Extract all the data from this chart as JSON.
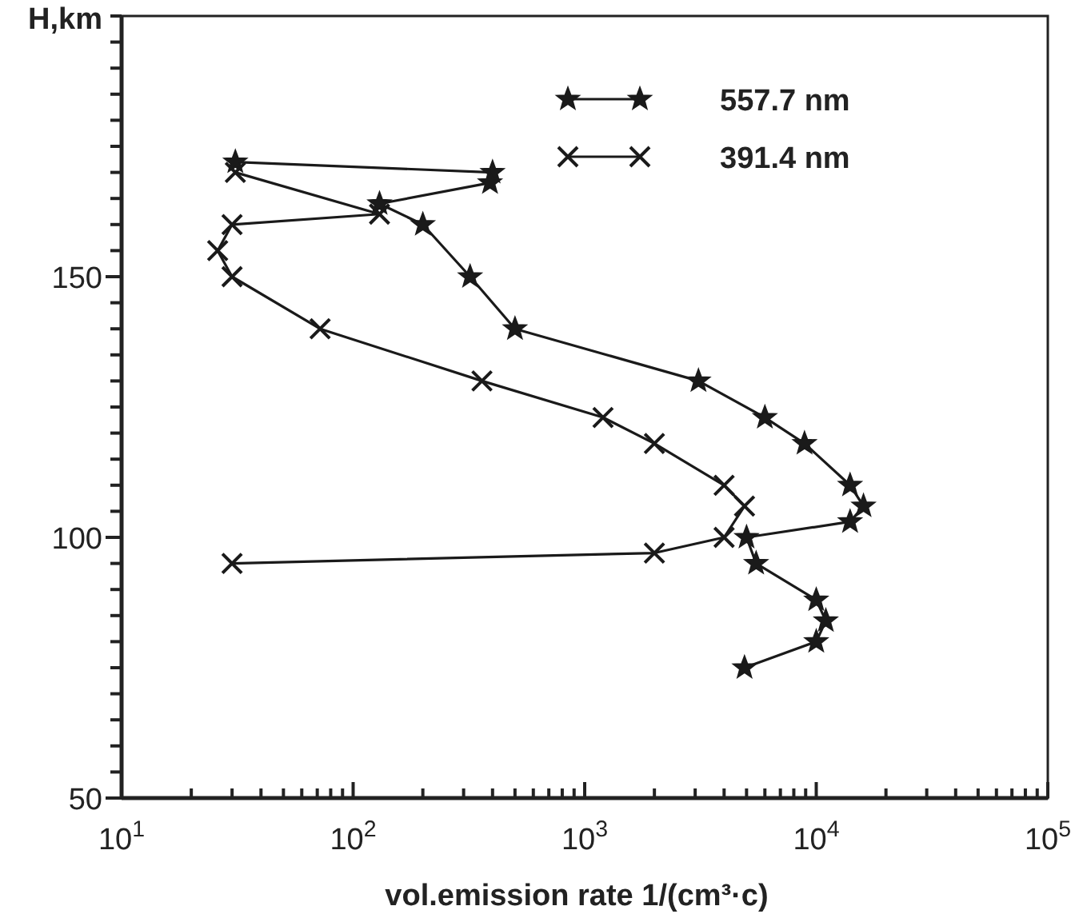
{
  "chart_data": {
    "type": "line",
    "xlabel": "vol.emission rate 1/(cm³·c)",
    "ylabel": "H,km",
    "log": "x",
    "grid": false,
    "legend": "top right",
    "line_style": "solid",
    "xlim": [
      10,
      100000
    ],
    "xticks": [
      {
        "value": 10,
        "label": "10$^{1}$"
      },
      {
        "value": 20,
        "label": null
      },
      {
        "value": 30,
        "label": null
      },
      {
        "value": 40,
        "label": null
      },
      {
        "value": 50,
        "label": null
      },
      {
        "value": 60,
        "label": null
      },
      {
        "value": 70,
        "label": null
      },
      {
        "value": 80,
        "label": null
      },
      {
        "value": 90,
        "label": null
      },
      {
        "value": 100,
        "label": "10$^{2}$"
      },
      {
        "value": 200,
        "label": null
      },
      {
        "value": 300,
        "label": null
      },
      {
        "value": 400,
        "label": null
      },
      {
        "value": 500,
        "label": null
      },
      {
        "value": 600,
        "label": null
      },
      {
        "value": 700,
        "label": null
      },
      {
        "value": 800,
        "label": null
      },
      {
        "value": 900,
        "label": null
      },
      {
        "value": 1000,
        "label": "10$^{3}$"
      },
      {
        "value": 2000,
        "label": null
      },
      {
        "value": 3000,
        "label": null
      },
      {
        "value": 4000,
        "label": null
      },
      {
        "value": 5000,
        "label": null
      },
      {
        "value": 6000,
        "label": null
      },
      {
        "value": 7000,
        "label": null
      },
      {
        "value": 8000,
        "label": null
      },
      {
        "value": 9000,
        "label": null
      },
      {
        "value": 10000,
        "label": "10$^{4}$"
      },
      {
        "value": 20000,
        "label": null
      },
      {
        "value": 30000,
        "label": null
      },
      {
        "value": 40000,
        "label": null
      },
      {
        "value": 50000,
        "label": null
      },
      {
        "value": 60000,
        "label": null
      },
      {
        "value": 70000,
        "label": null
      },
      {
        "value": 80000,
        "label": null
      },
      {
        "value": 90000,
        "label": null
      },
      {
        "value": 100000,
        "label": "10$^{5}$"
      }
    ],
    "ylim": [
      50,
      200
    ],
    "yticks": [
      50,
      {
        "value": 55,
        "label": null
      },
      {
        "value": 60,
        "label": null
      },
      {
        "value": 65,
        "label": null
      },
      {
        "value": 70,
        "label": null
      },
      {
        "value": 75,
        "label": null
      },
      {
        "value": 80,
        "label": null
      },
      {
        "value": 85,
        "label": null
      },
      {
        "value": 90,
        "label": null
      },
      {
        "value": 95,
        "label": null
      },
      100,
      {
        "value": 105,
        "label": null
      },
      {
        "value": 110,
        "label": null
      },
      {
        "value": 115,
        "label": null
      },
      {
        "value": 120,
        "label": null
      },
      {
        "value": 125,
        "label": null
      },
      {
        "value": 130,
        "label": null
      },
      {
        "value": 135,
        "label": null
      },
      {
        "value": 140,
        "label": null
      },
      {
        "value": 145,
        "label": null
      },
      150,
      {
        "value": 155,
        "label": null
      },
      {
        "value": 160,
        "label": null
      },
      {
        "value": 165,
        "label": null
      },
      {
        "value": 170,
        "label": null
      },
      {
        "value": 175,
        "label": null
      },
      {
        "value": 180,
        "label": null
      },
      {
        "value": 185,
        "label": null
      },
      {
        "value": 190,
        "label": null
      },
      {
        "value": 195,
        "label": null
      },
      {
        "value": 200,
        "label": null
      }
    ],
    "series": [
      {
        "name": "557.7 nm",
        "color": "#1a1a1a",
        "marker": "star",
        "x": [
          31,
          400,
          390,
          130,
          200,
          320,
          500,
          3100,
          6000,
          8900,
          14000,
          16000,
          14000,
          5000,
          5500,
          10000,
          11000,
          10000,
          4900
        ],
        "values": [
          172,
          170,
          168,
          164,
          160,
          150,
          140,
          130,
          123,
          118,
          110,
          106,
          103,
          100,
          95,
          88,
          84,
          80,
          75
        ]
      },
      {
        "name": "391.4 nm",
        "color": "#1a1a1a",
        "marker": "cross",
        "x": [
          30,
          2000,
          4000,
          4900,
          4000,
          2000,
          1200,
          360,
          72,
          30,
          26,
          30,
          130,
          31
        ],
        "values": [
          95,
          97,
          100,
          106,
          110,
          118,
          123,
          130,
          140,
          150,
          155,
          160,
          162,
          170
        ]
      }
    ]
  }
}
